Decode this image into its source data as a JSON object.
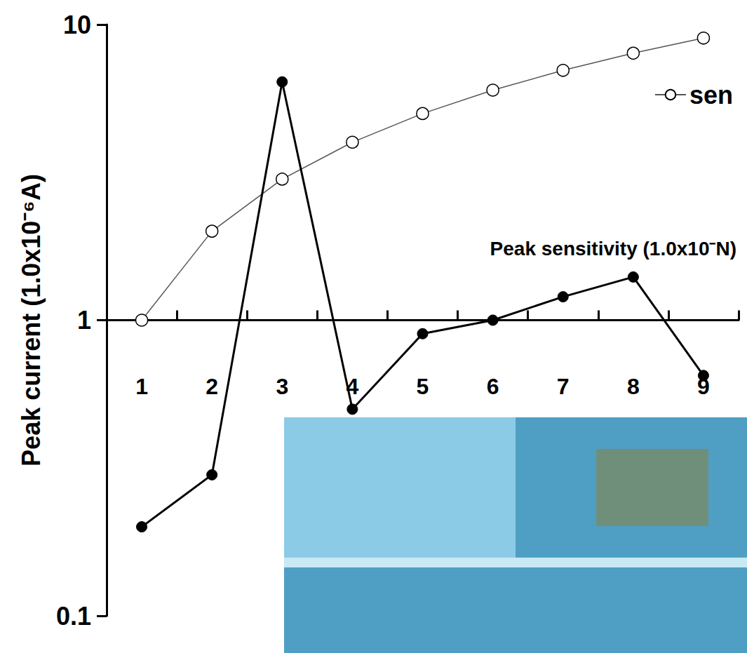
{
  "chart_data": {
    "type": "line",
    "y_label": "Peak current (1.0x10⁻⁶A)",
    "annotation": "Peak sensitivity (1.0x10⁻N)",
    "categories": [
      "1",
      "2",
      "3",
      "4",
      "5",
      "6",
      "7",
      "8",
      "9"
    ],
    "series": [
      {
        "name": "sen",
        "color": "#000000",
        "marker": "open_circle",
        "line_style": "solid",
        "values": [
          1.0,
          2.0,
          3.0,
          4.0,
          5.0,
          6.0,
          7.0,
          8.0,
          9.0
        ]
      },
      {
        "color": "#000000",
        "marker": "filled_circle",
        "line_style": "solid",
        "values": [
          0.2,
          0.3,
          6.4,
          0.5,
          0.9,
          1.0,
          1.2,
          1.4,
          0.65
        ]
      }
    ],
    "ylim": [
      0.1,
      10
    ],
    "yticks": [
      0.1,
      1,
      10
    ],
    "log": "y",
    "grid": false,
    "legend": "top-right"
  }
}
